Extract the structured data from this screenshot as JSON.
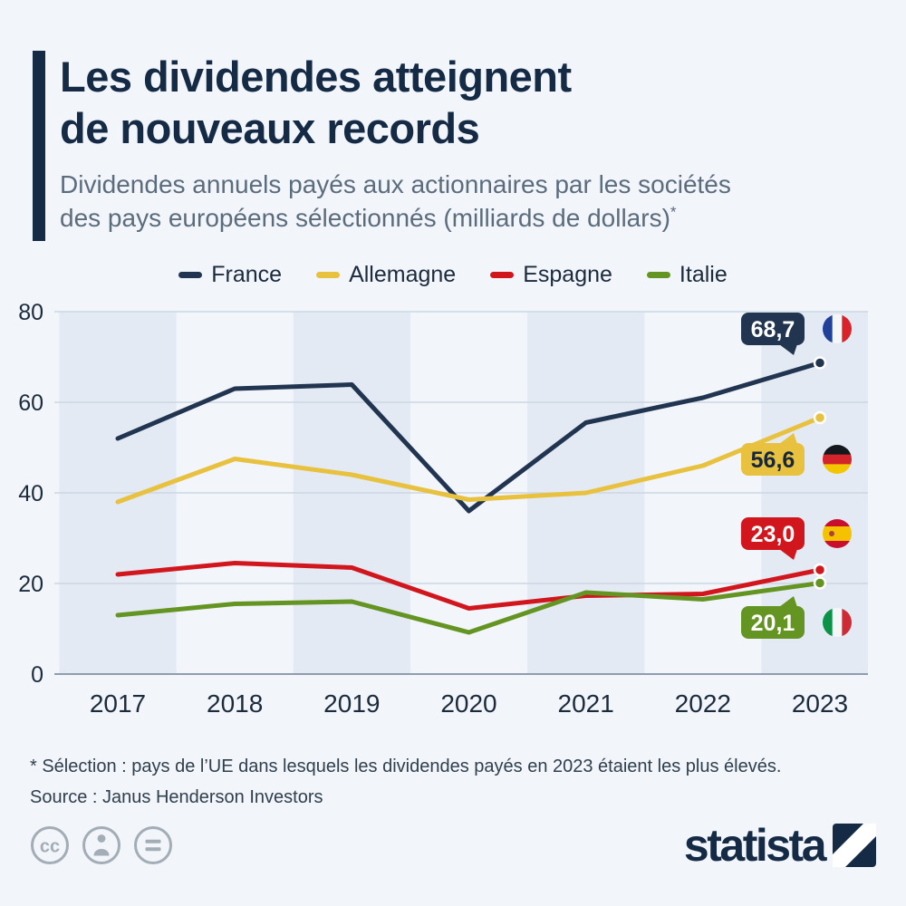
{
  "theme": {
    "navy": "#152b45",
    "muted": "#5b6c7d",
    "bg": "#f2f5fa",
    "stripe": "#e4eaf3",
    "grid": "#ccd6e2",
    "zero_line": "#8f9dad",
    "axis_text": "#1b2b3c"
  },
  "header": {
    "title_line1": "Les dividendes atteignent",
    "title_line2": "de nouveaux records",
    "subtitle_line1": "Dividendes annuels payés aux actionnaires par les sociétés",
    "subtitle_line2": "des pays européens sélectionnés (milliards de dollars)",
    "asterisk": "*"
  },
  "chart_data": {
    "type": "line",
    "title": "Les dividendes atteignent de nouveaux records",
    "subtitle": "Dividendes annuels payés aux actionnaires par les sociétés des pays européens sélectionnés (milliards de dollars)*",
    "x": [
      2017,
      2018,
      2019,
      2020,
      2021,
      2022,
      2023
    ],
    "ylim": [
      0,
      80
    ],
    "yticks": [
      0,
      20,
      40,
      60,
      80
    ],
    "grid": true,
    "legend_position": "top",
    "series": [
      {
        "name": "France",
        "flag": "france",
        "color": "#213550",
        "text_color": "#ffffff",
        "values": [
          52,
          63,
          63.9,
          36,
          55.5,
          61,
          68.7
        ],
        "end_label": "68,7"
      },
      {
        "name": "Allemagne",
        "flag": "germany",
        "color": "#e8c13f",
        "text_color": "#16263c",
        "values": [
          38,
          47.5,
          44,
          38.5,
          40,
          46,
          56.6
        ],
        "end_label": "56,6"
      },
      {
        "name": "Espagne",
        "flag": "spain",
        "color": "#d2161e",
        "text_color": "#ffffff",
        "values": [
          22,
          24.5,
          23.5,
          14.5,
          17.3,
          17.7,
          23
        ],
        "end_label": "23,0"
      },
      {
        "name": "Italie",
        "flag": "italy",
        "color": "#649422",
        "text_color": "#ffffff",
        "values": [
          13,
          15.5,
          16,
          9.2,
          18,
          16.5,
          20.1
        ],
        "end_label": "20,1"
      }
    ]
  },
  "footer": {
    "note": "* Sélection : pays de l’UE dans lesquels les dividendes payés en 2023 étaient les plus élevés.",
    "source": "Source : Janus Henderson Investors"
  },
  "branding": {
    "logo_text": "statista",
    "license_icons": [
      "cc-icon",
      "attribution-icon",
      "equal-icon"
    ]
  }
}
